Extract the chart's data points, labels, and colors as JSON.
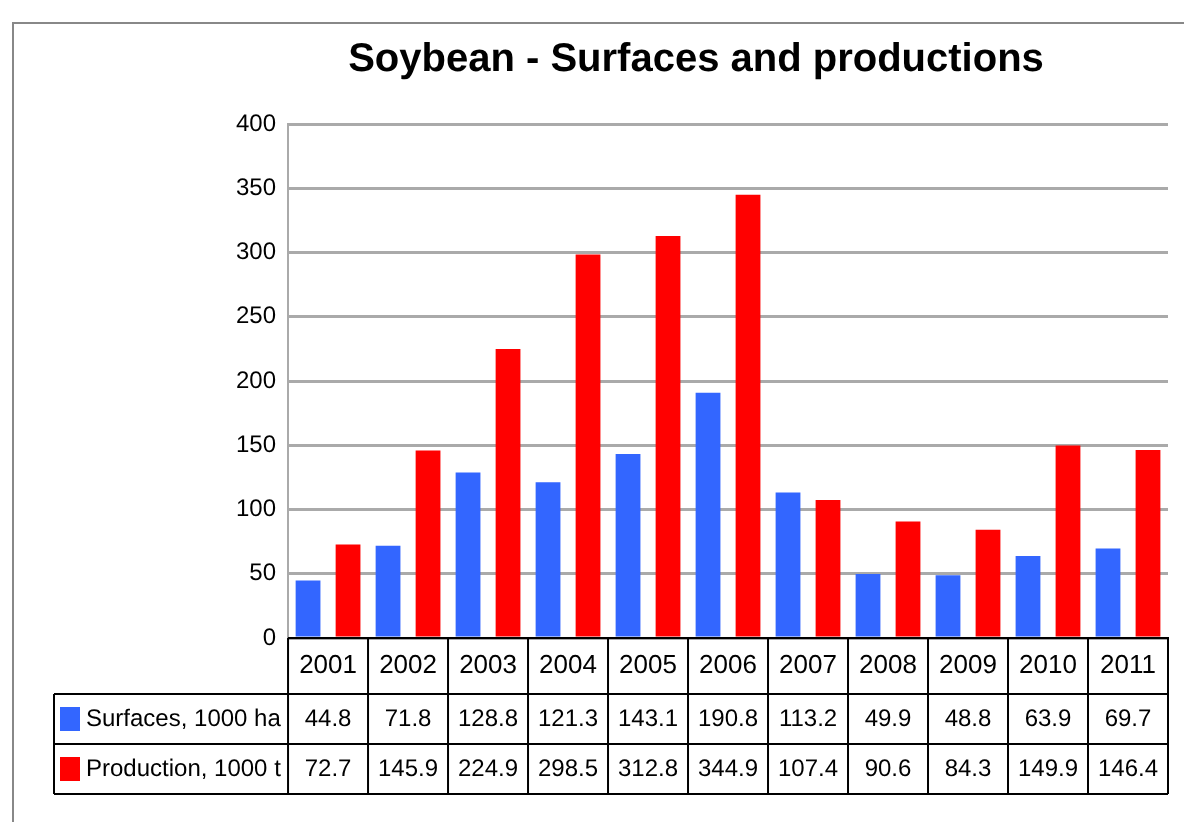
{
  "chart_data": {
    "type": "bar",
    "title": "Soybean - Surfaces and productions",
    "categories": [
      "2001",
      "2002",
      "2003",
      "2004",
      "2005",
      "2006",
      "2007",
      "2008",
      "2009",
      "2010",
      "2011"
    ],
    "series": [
      {
        "name": "Surfaces, 1000 ha",
        "color": "#3366ff",
        "values": [
          44.8,
          71.8,
          128.8,
          121.3,
          143.1,
          190.8,
          113.2,
          49.9,
          48.8,
          63.9,
          69.7
        ]
      },
      {
        "name": "Production, 1000 t",
        "color": "#ff0000",
        "values": [
          72.7,
          145.9,
          224.9,
          298.5,
          312.8,
          344.9,
          107.4,
          90.6,
          84.3,
          149.9,
          146.4
        ]
      }
    ],
    "ylim": [
      0,
      400
    ],
    "yticks": [
      0,
      50,
      100,
      150,
      200,
      250,
      300,
      350,
      400
    ],
    "grid": "y",
    "legend": "bottom left",
    "data_labels": true
  }
}
